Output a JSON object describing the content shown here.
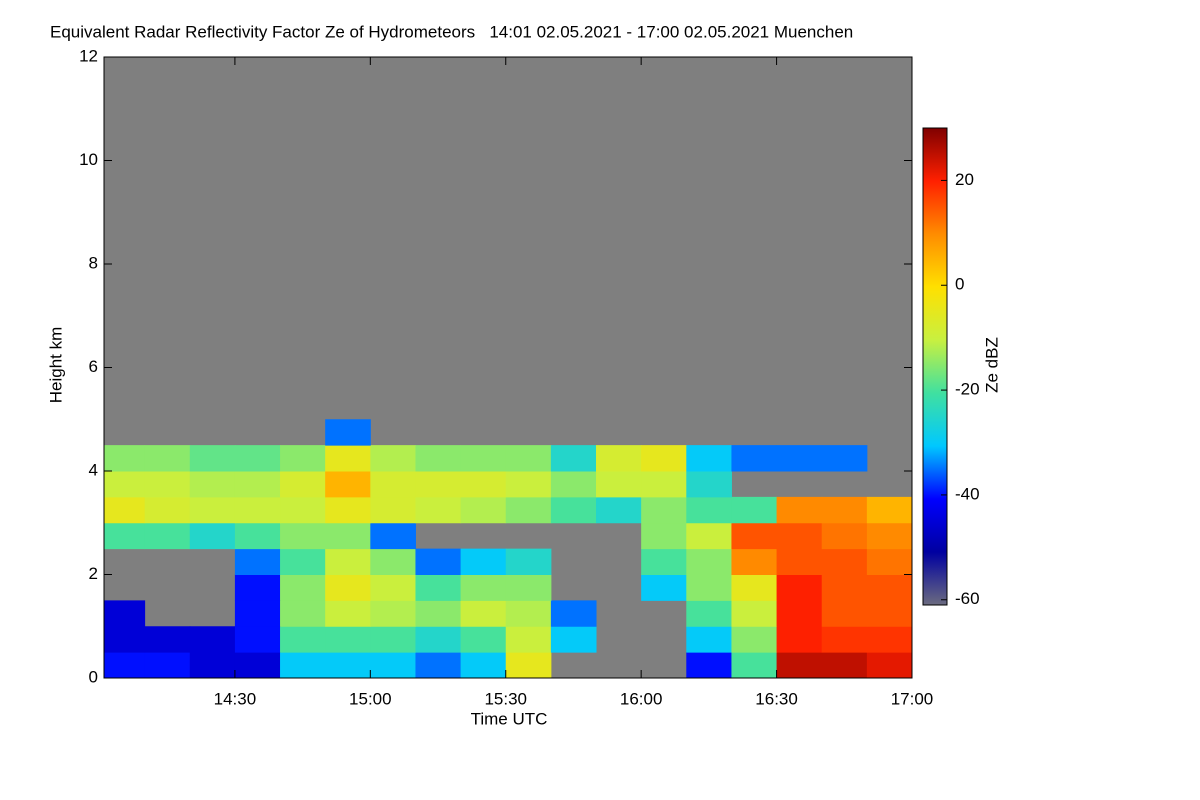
{
  "chart_data": {
    "type": "heatmap",
    "title": "Equivalent Radar Reflectivity Factor Ze of Hydrometeors   14:01 02.05.2021 - 17:00 02.05.2021 Muenchen",
    "x_label": "Time UTC",
    "y_label": "Height km",
    "colorbar_label": "Ze dBZ",
    "xlim": [
      "14:01",
      "17:00"
    ],
    "xticks": [
      "14:30",
      "15:00",
      "15:30",
      "16:00",
      "16:30",
      "17:00"
    ],
    "ylim": [
      0,
      12
    ],
    "yticks": [
      0,
      2,
      4,
      6,
      8,
      10,
      12
    ],
    "zlim": [
      -61,
      30
    ],
    "zticks": [
      -60,
      -40,
      -20,
      0,
      20
    ],
    "background": "#7f7f7f",
    "colorscale": [
      "#6b6b80",
      "#0000a0",
      "#0000ff",
      "#00c8ff",
      "#40e0a0",
      "#c8f040",
      "#ffe000",
      "#ff8c00",
      "#ff2000",
      "#800000"
    ],
    "x": [
      "14:01",
      "14:10",
      "14:20",
      "14:30",
      "14:40",
      "14:50",
      "15:00",
      "15:10",
      "15:20",
      "15:30",
      "15:40",
      "15:50",
      "16:00",
      "16:10",
      "16:20",
      "16:30",
      "16:40",
      "16:50"
    ],
    "y": [
      0,
      0.5,
      1,
      1.5,
      2,
      2.5,
      3,
      3.5,
      4,
      4.5
    ],
    "z": [
      [
        -40,
        -40,
        -45,
        -45,
        -30,
        -30,
        -30,
        -35,
        -30,
        -5,
        null,
        null,
        null,
        -40,
        -20,
        25,
        25,
        22
      ],
      [
        -45,
        -45,
        -45,
        -40,
        -20,
        -20,
        -20,
        -25,
        -20,
        -10,
        -30,
        null,
        null,
        -30,
        -15,
        20,
        18,
        18
      ],
      [
        -45,
        null,
        null,
        -40,
        -15,
        -10,
        -12,
        -15,
        -10,
        -12,
        -35,
        null,
        null,
        -20,
        -10,
        20,
        15,
        15
      ],
      [
        null,
        null,
        null,
        -40,
        -15,
        -5,
        -10,
        -20,
        -15,
        -15,
        null,
        null,
        -30,
        -15,
        -5,
        20,
        15,
        15
      ],
      [
        null,
        null,
        null,
        -35,
        -20,
        -10,
        -15,
        -35,
        -30,
        -25,
        null,
        null,
        -20,
        -15,
        10,
        15,
        15,
        12
      ],
      [
        -20,
        -20,
        -25,
        -20,
        -15,
        -15,
        -35,
        null,
        null,
        null,
        null,
        null,
        -15,
        -10,
        15,
        15,
        12,
        10
      ],
      [
        -5,
        -8,
        -10,
        -10,
        -10,
        -5,
        -8,
        -10,
        -12,
        -15,
        -20,
        -25,
        -15,
        -20,
        -20,
        10,
        10,
        5
      ],
      [
        -10,
        -10,
        -12,
        -12,
        -8,
        5,
        -8,
        -8,
        -8,
        -10,
        -15,
        -10,
        -10,
        -25,
        null,
        null,
        null,
        null
      ],
      [
        -15,
        -15,
        -18,
        -18,
        -15,
        -5,
        -12,
        -15,
        -15,
        -15,
        -25,
        -8,
        -5,
        -30,
        -35,
        -35,
        -35,
        null
      ],
      [
        null,
        null,
        null,
        null,
        null,
        -35,
        null,
        null,
        null,
        null,
        null,
        null,
        null,
        null,
        null,
        null,
        null,
        null
      ]
    ]
  }
}
